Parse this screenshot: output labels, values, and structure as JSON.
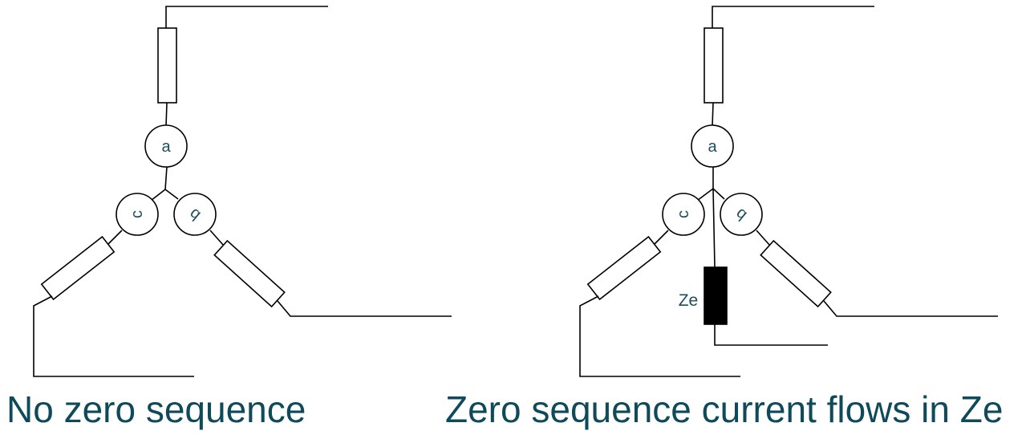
{
  "left_diagram": {
    "phase_labels": {
      "a": "a",
      "b": "b",
      "c": "c"
    },
    "caption": "No zero sequence"
  },
  "right_diagram": {
    "phase_labels": {
      "a": "a",
      "b": "b",
      "c": "c"
    },
    "neutral_impedance_label": "Ze",
    "caption": "Zero sequence current flows in Ze"
  }
}
